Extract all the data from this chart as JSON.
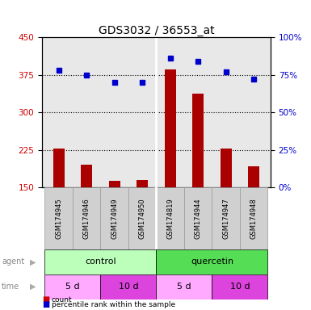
{
  "title": "GDS3032 / 36553_at",
  "samples": [
    "GSM174945",
    "GSM174946",
    "GSM174949",
    "GSM174950",
    "GSM174819",
    "GSM174944",
    "GSM174947",
    "GSM174948"
  ],
  "counts": [
    228,
    196,
    163,
    165,
    385,
    338,
    228,
    193
  ],
  "percentiles": [
    78,
    75,
    70,
    70,
    86,
    84,
    77,
    72
  ],
  "ylim_left": [
    150,
    450
  ],
  "ylim_right": [
    0,
    100
  ],
  "yticks_left": [
    150,
    225,
    300,
    375,
    450
  ],
  "yticks_right": [
    0,
    25,
    50,
    75,
    100
  ],
  "hlines": [
    225,
    300,
    375
  ],
  "agent_labels": [
    "control",
    "quercetin"
  ],
  "agent_light_color": "#bbffbb",
  "agent_dark_color": "#55dd55",
  "time_light_color": "#ffaaff",
  "time_dark_color": "#dd44dd",
  "bar_color": "#aa0000",
  "dot_color": "#0000cc",
  "bg_color": "#ffffff",
  "axis_bg": "#e8e8e8",
  "left_axis_color": "#cc0000",
  "right_axis_color": "#0000cc",
  "legend_count_color": "#cc0000",
  "legend_pct_color": "#0000cc",
  "bar_width": 0.4,
  "dot_size": 5
}
